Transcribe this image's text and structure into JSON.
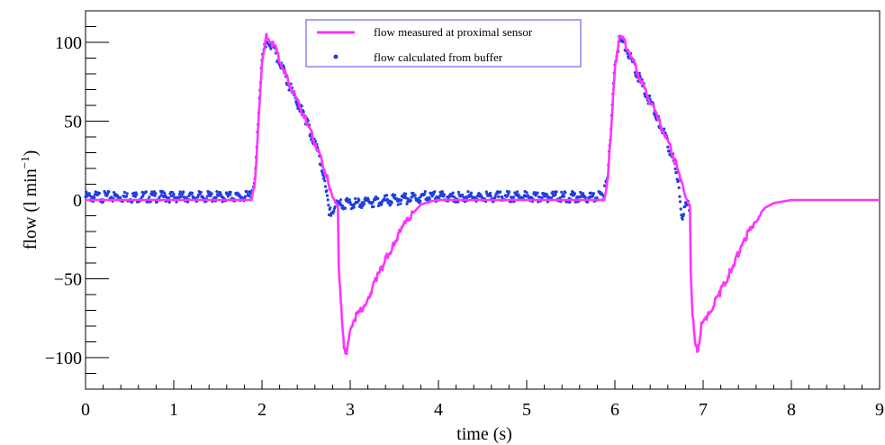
{
  "chart_data": {
    "type": "line",
    "title": "",
    "xlabel": "time (s)",
    "ylabel_main": "flow (l min",
    "ylabel_sup": "−1",
    "ylabel_close": ")",
    "xlim": [
      0,
      9
    ],
    "ylim": [
      -120,
      120
    ],
    "x_ticks": [
      0,
      1,
      2,
      3,
      4,
      5,
      6,
      7,
      8,
      9
    ],
    "x_tick_labels": [
      "0",
      "1",
      "2",
      "3",
      "4",
      "5",
      "6",
      "7",
      "8",
      "9"
    ],
    "y_ticks": [
      100,
      50,
      0,
      -50,
      -100
    ],
    "y_tick_labels": [
      "100",
      "50",
      "0",
      "−50",
      "−100"
    ],
    "grid": false,
    "legend_position": "top-center",
    "series": [
      {
        "name": "flow measured at proximal sensor",
        "style": "line",
        "color": "#ff33ff",
        "x": [
          0,
          1.88,
          1.92,
          2.0,
          2.05,
          2.1,
          2.15,
          2.3,
          2.5,
          2.65,
          2.75,
          2.8,
          2.85,
          2.86,
          2.87,
          2.9,
          2.93,
          2.96,
          3.0,
          3.05,
          3.1,
          3.2,
          3.3,
          3.4,
          3.5,
          3.6,
          3.7,
          3.8,
          3.9,
          4.0,
          5.88,
          5.92,
          6.0,
          6.05,
          6.1,
          6.15,
          6.3,
          6.5,
          6.65,
          6.75,
          6.8,
          6.84,
          6.85,
          6.86,
          6.88,
          6.91,
          6.94,
          6.98,
          7.05,
          7.1,
          7.2,
          7.3,
          7.4,
          7.5,
          7.6,
          7.7,
          7.8,
          7.9,
          8.0,
          9.0
        ],
        "y": [
          0,
          0,
          12,
          85,
          104,
          101,
          96,
          75,
          50,
          30,
          12,
          2,
          -3,
          -3,
          -45,
          -70,
          -92,
          -98,
          -82,
          -75,
          -72,
          -62,
          -50,
          -38,
          -27,
          -17,
          -9,
          -3,
          -1,
          0,
          0,
          12,
          85,
          104,
          101,
          96,
          75,
          50,
          30,
          12,
          2,
          -3,
          -3,
          -45,
          -72,
          -92,
          -95,
          -80,
          -74,
          -68,
          -58,
          -46,
          -34,
          -22,
          -12,
          -5,
          -2,
          -1,
          0,
          0
        ]
      },
      {
        "name": "flow calculated from buffer",
        "style": "points",
        "color": "#1f3fe0",
        "x": [
          0,
          1.86,
          1.92,
          2.0,
          2.05,
          2.1,
          2.15,
          2.3,
          2.5,
          2.65,
          2.72,
          2.76,
          2.8,
          2.85,
          3.85,
          5.86,
          5.92,
          6.0,
          6.05,
          6.1,
          6.15,
          6.3,
          6.5,
          6.65,
          6.72,
          6.76,
          6.8,
          6.85
        ],
        "y": [
          2,
          2,
          14,
          88,
          101,
          99,
          94,
          74,
          50,
          28,
          10,
          -10,
          -5,
          -3,
          2,
          2,
          14,
          88,
          101,
          99,
          94,
          74,
          50,
          28,
          10,
          -10,
          -5,
          -3
        ]
      }
    ]
  }
}
